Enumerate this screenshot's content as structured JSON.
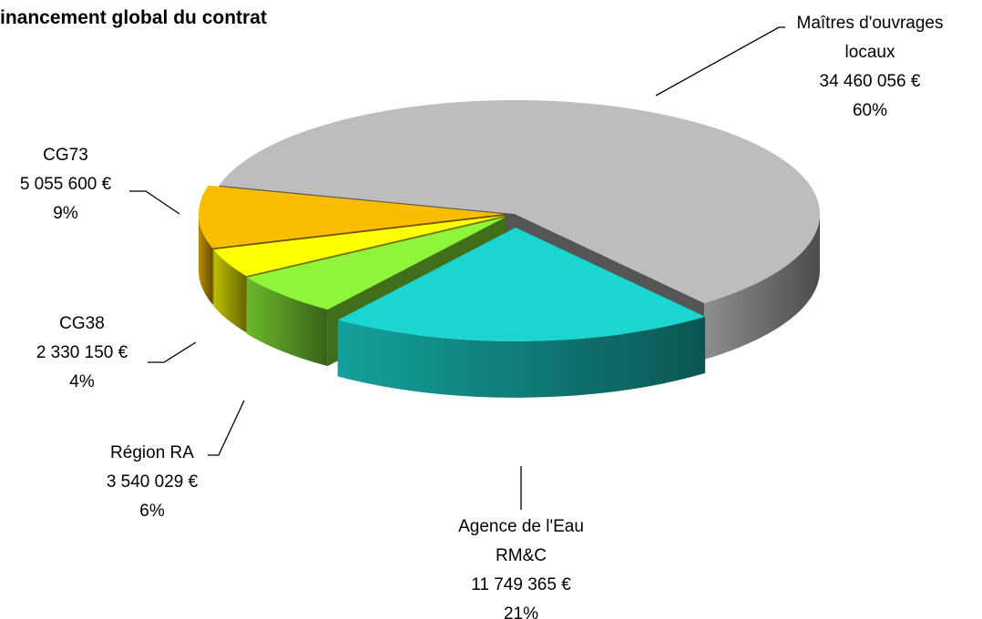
{
  "chart_data": {
    "type": "pie",
    "title": "inancement global du contrat",
    "categories": [
      "Maîtres d'ouvrages locaux",
      "Agence de l'Eau RM&C",
      "Région RA",
      "CG38",
      "CG73"
    ],
    "values": [
      34460056,
      11749365,
      3540029,
      2330150,
      5055600
    ],
    "value_labels": [
      "34 460 056 €",
      "11 749 365 €",
      "3 540 029 €",
      "2 330 150 €",
      "5 055 600 €"
    ],
    "percent_labels": [
      "60%",
      "21%",
      "6%",
      "4%",
      "9%"
    ],
    "colors": [
      "#bdbdbd",
      "#1bd6d0",
      "#8ff53a",
      "#ffff00",
      "#fbbd00"
    ]
  }
}
